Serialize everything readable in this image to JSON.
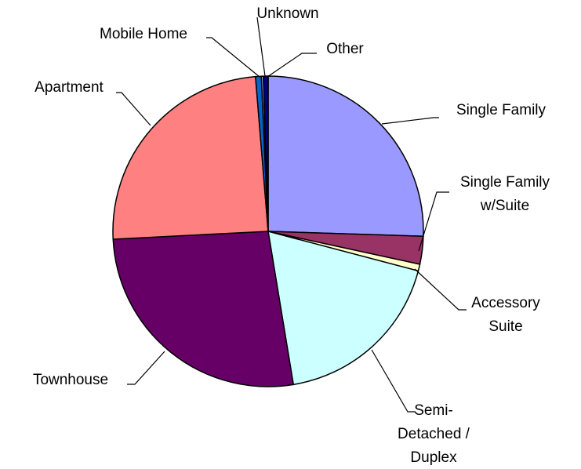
{
  "chart_data": {
    "type": "pie",
    "categories": [
      "Single Family",
      "Single Family w/Suite",
      "Accessory Suite",
      "Semi-Detached / Duplex",
      "Townhouse",
      "Apartment",
      "Mobile Home",
      "Unknown",
      "Other"
    ],
    "values": [
      25.5,
      2.9,
      0.7,
      18.3,
      26.8,
      24.5,
      0.6,
      0.2,
      0.5
    ],
    "colors": [
      "#9999ff",
      "#993366",
      "#ffffcc",
      "#ccffff",
      "#660066",
      "#ff8080",
      "#0066cc",
      "#ccccff",
      "#000080"
    ]
  }
}
